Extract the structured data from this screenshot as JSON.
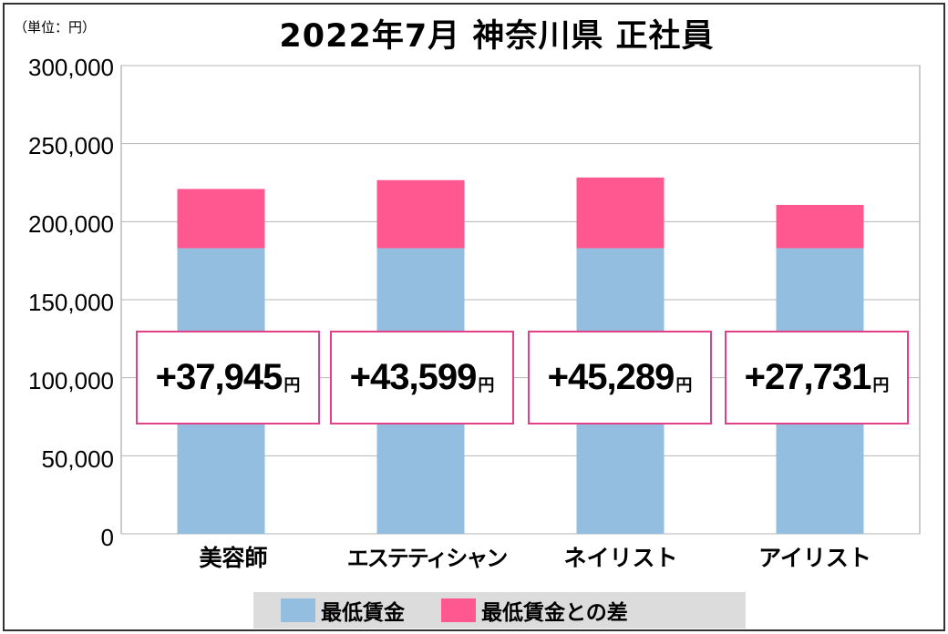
{
  "unit_label": "（単位：円）",
  "chart_data": {
    "type": "bar",
    "stacked": true,
    "title": "2022年7月 神奈川県 正社員",
    "categories": [
      "美容師",
      "エステティシャン",
      "ネイリスト",
      "アイリスト"
    ],
    "series": [
      {
        "name": "最低賃金",
        "color": "#93bedf",
        "values": [
          183000,
          183000,
          183000,
          183000
        ]
      },
      {
        "name": "最低賃金との差",
        "color": "#ff5790",
        "values": [
          37945,
          43599,
          45289,
          27731
        ]
      }
    ],
    "annotations": [
      "+37,945",
      "+43,599",
      "+45,289",
      "+27,731"
    ],
    "annotation_unit": "円",
    "yticks": [
      "0",
      "50,000",
      "100,000",
      "150,000",
      "200,000",
      "250,000",
      "300,000"
    ],
    "ylim": [
      0,
      300000
    ],
    "grid": true,
    "legend_position": "bottom"
  }
}
